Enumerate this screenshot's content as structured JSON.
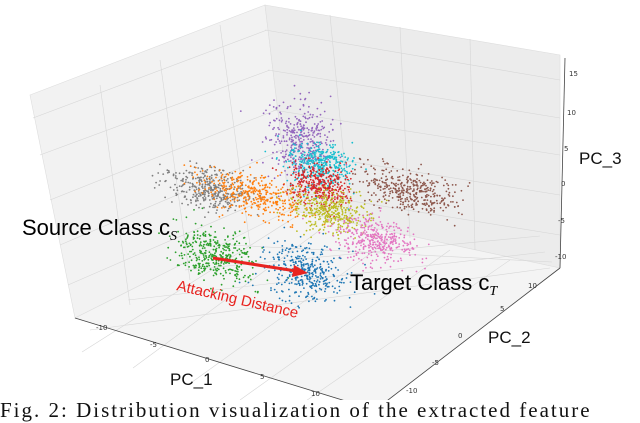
{
  "chart_data": {
    "type": "scatter",
    "dimensions": 3,
    "xlabel": "PC_1",
    "ylabel": "PC_2",
    "zlabel": "PC_3",
    "xlim": [
      -13,
      15
    ],
    "ylim": [
      -12,
      13
    ],
    "zlim": [
      -10,
      16
    ],
    "xticks": [
      "-10",
      "-5",
      "0",
      "5",
      "10",
      "15"
    ],
    "yticks": [
      "-10",
      "-5",
      "0",
      "5",
      "10"
    ],
    "zticks": [
      "-10",
      "-5",
      "0",
      "5",
      "10",
      "15"
    ],
    "grid": true,
    "clusters": [
      {
        "color": "#9467bd",
        "center": [
          3.4,
          0,
          12
        ],
        "spread": [
          1.4,
          1.2,
          2.2
        ]
      },
      {
        "color": "#17becf",
        "center": [
          5.3,
          0,
          9.3
        ],
        "spread": [
          1.4,
          1.2,
          1.2
        ]
      },
      {
        "color": "#7f7f7f",
        "center": [
          -5.1,
          0,
          1.2
        ],
        "spread": [
          1.8,
          1.2,
          0.8
        ]
      },
      {
        "color": "#ff7f0e",
        "center": [
          -0.8,
          0,
          2.4
        ],
        "spread": [
          2.4,
          1.2,
          1.0
        ]
      },
      {
        "color": "#d62728",
        "center": [
          5.3,
          0,
          6.5
        ],
        "spread": [
          1.4,
          1.2,
          1.0
        ]
      },
      {
        "color": "#bcbd22",
        "center": [
          6.2,
          0,
          3.2
        ],
        "spread": [
          1.6,
          1.2,
          1.0
        ]
      },
      {
        "color": "#8c564b",
        "center": [
          9.2,
          10,
          0
        ],
        "spread": [
          2.2,
          1.2,
          0.9
        ]
      },
      {
        "color": "#e377c2",
        "center": [
          8.2,
          5,
          -3.6
        ],
        "spread": [
          1.8,
          1.2,
          1.2
        ]
      },
      {
        "color": "#2ca02c",
        "center": [
          -2.4,
          -5,
          -2.9
        ],
        "spread": [
          1.9,
          1.2,
          1.4
        ]
      },
      {
        "color": "#1f77b4",
        "center": [
          6.1,
          -5,
          -1.4
        ],
        "spread": [
          1.8,
          1.2,
          1.6
        ]
      }
    ],
    "annotations": {
      "source": "Source Class c",
      "source_sub": "S",
      "target": "Target Class c",
      "target_sub": "T",
      "arrow": "Attacking Distance",
      "arrow_color": "#e8231f"
    }
  },
  "caption": "Fig. 2: Distribution visualization of the extracted feature"
}
